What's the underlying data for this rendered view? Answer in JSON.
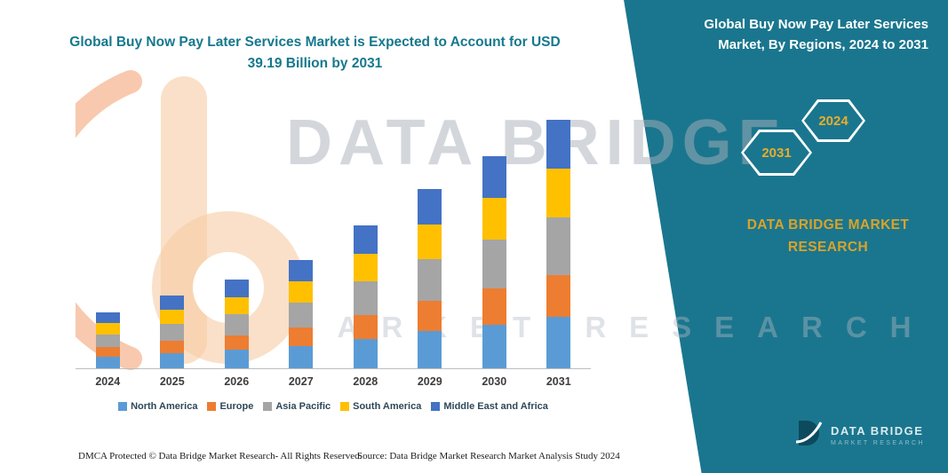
{
  "header": {
    "left_title": "Global Buy Now Pay Later Services Market is Expected to Account for USD 39.19 Billion by 2031",
    "panel_title": "Global Buy Now Pay Later Services Market, By Regions, 2024 to 2031"
  },
  "panel": {
    "hexagons": [
      {
        "label": "2031"
      },
      {
        "label": "2024"
      }
    ],
    "brand_text": "DATA BRIDGE MARKET RESEARCH",
    "logo": {
      "name": "DATA BRIDGE",
      "subtitle": "MARKET RESEARCH"
    }
  },
  "watermark": {
    "line1": "DATA BRIDGE",
    "line2": "MARKET RESEARCH"
  },
  "footer": {
    "dmca": "DMCA Protected © Data Bridge Market Research-  All Rights Reserved.",
    "source": "Source: Data Bridge Market Research  Market Analysis Study 2024"
  },
  "colors": {
    "panel_teal": "#1a768e",
    "title_teal": "#16788e",
    "gold": "#D9A32B",
    "hex_year_gold": "#e9ad2c"
  },
  "chart_data": {
    "type": "bar",
    "stacked": true,
    "title": "",
    "xlabel": "",
    "ylabel": "",
    "grid": false,
    "legend_position": "bottom",
    "ylim": [
      0,
      40
    ],
    "note": "No y-axis shown; values estimated in USD billion assuming 2031 total = 39.19",
    "categories": [
      "2024",
      "2025",
      "2026",
      "2027",
      "2028",
      "2029",
      "2030",
      "2031"
    ],
    "series": [
      {
        "name": "North America",
        "color": "#5B9BD5",
        "values": [
          1.83,
          2.38,
          2.9,
          3.54,
          4.67,
          5.85,
          6.93,
          8.11
        ]
      },
      {
        "name": "Europe",
        "color": "#ED7D31",
        "values": [
          1.48,
          1.93,
          2.35,
          2.87,
          3.79,
          4.75,
          5.62,
          6.58
        ]
      },
      {
        "name": "Asia Pacific",
        "color": "#A5A5A5",
        "values": [
          2.05,
          2.66,
          3.25,
          3.96,
          5.23,
          6.56,
          7.76,
          9.09
        ]
      },
      {
        "name": "South America",
        "color": "#FFC000",
        "values": [
          1.73,
          2.25,
          2.74,
          3.35,
          4.42,
          5.54,
          6.56,
          7.68
        ]
      },
      {
        "name": "Middle East and Africa",
        "color": "#4472C4",
        "values": [
          1.73,
          2.25,
          2.74,
          3.35,
          4.42,
          5.54,
          6.56,
          7.73
        ]
      }
    ],
    "totals": [
      8.82,
      11.47,
      13.98,
      17.07,
      22.53,
      28.24,
      33.43,
      39.19
    ]
  }
}
